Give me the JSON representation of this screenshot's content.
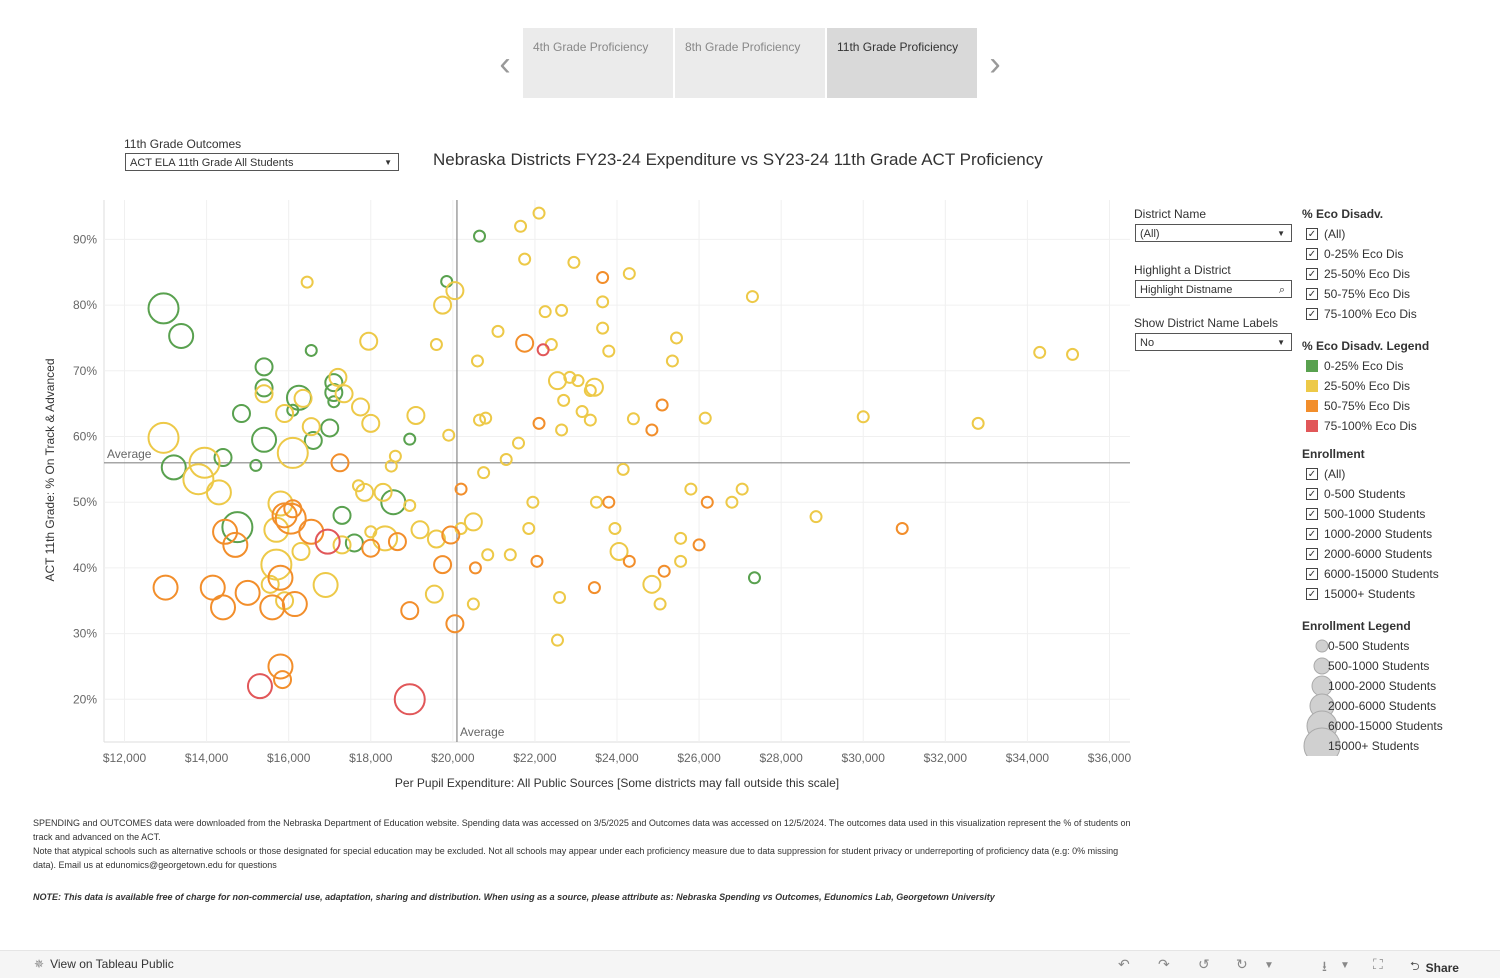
{
  "tabs": {
    "items": [
      {
        "label": "4th Grade Proficiency",
        "active": false
      },
      {
        "label": "8th Grade Proficiency",
        "active": false
      },
      {
        "label": "11th Grade Proficiency",
        "active": true
      }
    ]
  },
  "outcome_filter": {
    "label": "11th Grade Outcomes",
    "value": "ACT ELA 11th Grade All Students"
  },
  "filters": {
    "district_name_label": "District Name",
    "district_name_value": "(All)",
    "highlight_label": "Highlight a District",
    "highlight_placeholder": "Highlight Distname",
    "show_labels_label": "Show District Name Labels",
    "show_labels_value": "No"
  },
  "eco_filter": {
    "title": "% Eco Disadv.",
    "items": [
      "(All)",
      "0-25% Eco Dis",
      "25-50% Eco Dis",
      "50-75% Eco Dis",
      "75-100% Eco Dis"
    ]
  },
  "eco_legend": {
    "title": "% Eco Disadv. Legend",
    "items": [
      {
        "label": "0-25% Eco Dis",
        "color": "#59a14f"
      },
      {
        "label": "25-50% Eco Dis",
        "color": "#edc948"
      },
      {
        "label": "50-75% Eco Dis",
        "color": "#f28e2b"
      },
      {
        "label": "75-100% Eco Dis",
        "color": "#e15759"
      }
    ]
  },
  "enroll_filter": {
    "title": "Enrollment",
    "items": [
      "(All)",
      "0-500 Students",
      "500-1000 Students",
      "1000-2000 Students",
      "2000-6000 Students",
      "6000-15000 Students",
      "15000+ Students"
    ]
  },
  "enroll_legend": {
    "title": "Enrollment Legend",
    "items": [
      "0-500 Students",
      "500-1000 Students",
      "1000-2000 Students",
      "2000-6000 Students",
      "6000-15000 Students",
      "15000+ Students"
    ]
  },
  "notes": {
    "line1": "SPENDING and OUTCOMES data were downloaded from the Nebraska Department of Education website. Spending data was accessed on 3/5/2025 and Outcomes data was accessed on 12/5/2024. The outcomes data used in this visualization represent the % of students on track and advanced on the ACT.",
    "line2": "Note that atypical schools such as alternative schools or those designated for special education may be excluded. Not all schools may appear under each proficiency measure due to data suppression for student privacy or underreporting of proficiency data (e.g: 0% missing data). Email us at edunomics@georgetown.edu for questions",
    "line3": "NOTE: This data is available free of charge for non-commercial use, adaptation, sharing and distribution. When using as a source, please attribute as: Nebraska Spending vs Outcomes, Edunomics Lab, Georgetown University"
  },
  "footer": {
    "view_label": "View on Tableau Public",
    "share_label": "Share"
  },
  "chart_data": {
    "type": "scatter",
    "title": "Nebraska Districts FY23-24 Expenditure vs SY23-24 11th Grade ACT Proficiency",
    "xlabel": "Per Pupil Expenditure: All Public Sources [Some districts may fall outside this scale]",
    "ylabel": "ACT 11th Grade: % On Track & Advanced",
    "xlim": [
      11500,
      36500
    ],
    "ylim": [
      13.5,
      96
    ],
    "x_ticks": [
      12000,
      14000,
      16000,
      18000,
      20000,
      22000,
      24000,
      26000,
      28000,
      30000,
      32000,
      34000,
      36000
    ],
    "x_tick_labels": [
      "$12,000",
      "$14,000",
      "$16,000",
      "$18,000",
      "$20,000",
      "$22,000",
      "$24,000",
      "$26,000",
      "$28,000",
      "$30,000",
      "$32,000",
      "$34,000",
      "$36,000"
    ],
    "y_ticks": [
      20,
      30,
      40,
      50,
      60,
      70,
      80,
      90
    ],
    "y_tick_labels": [
      "20%",
      "30%",
      "40%",
      "50%",
      "60%",
      "70%",
      "80%",
      "90%"
    ],
    "average_x": 20100,
    "average_y": 56,
    "average_label_h": "Average",
    "average_label_v": "Average",
    "size_key": "1=0-500, 2=500-1000, 3=1000-2000, 4=2000-6000, 5=6000-15000, 6=15000+",
    "color_key": "g=0-25%, y=25-50%, o=50-75%, r=75-100%",
    "points": [
      [
        12950,
        79.5,
        "g",
        4
      ],
      [
        13380,
        75.3,
        "g",
        3
      ],
      [
        13200,
        55.3,
        "g",
        3
      ],
      [
        14400,
        56.8,
        "g",
        2
      ],
      [
        14750,
        46.2,
        "g",
        4
      ],
      [
        15400,
        70.6,
        "g",
        2
      ],
      [
        15400,
        67.4,
        "g",
        2
      ],
      [
        15200,
        55.6,
        "g",
        1
      ],
      [
        15400,
        59.5,
        "g",
        3
      ],
      [
        14850,
        63.5,
        "g",
        2
      ],
      [
        16250,
        65.9,
        "g",
        3
      ],
      [
        16100,
        64.0,
        "g",
        1
      ],
      [
        16550,
        73.1,
        "g",
        1
      ],
      [
        16600,
        59.4,
        "g",
        2
      ],
      [
        17100,
        68.2,
        "g",
        2
      ],
      [
        17100,
        66.7,
        "g",
        2
      ],
      [
        17100,
        65.3,
        "g",
        1
      ],
      [
        17000,
        61.3,
        "g",
        2
      ],
      [
        17300,
        48.0,
        "g",
        2
      ],
      [
        17600,
        43.8,
        "g",
        2
      ],
      [
        18550,
        50.0,
        "g",
        3
      ],
      [
        18950,
        59.6,
        "g",
        1
      ],
      [
        19850,
        83.6,
        "g",
        1
      ],
      [
        20650,
        90.5,
        "g",
        1
      ],
      [
        27350,
        38.5,
        "g",
        1
      ],
      [
        12950,
        59.8,
        "y",
        4
      ],
      [
        13950,
        56.0,
        "y",
        4
      ],
      [
        13800,
        53.5,
        "y",
        4
      ],
      [
        14300,
        51.5,
        "y",
        3
      ],
      [
        15400,
        66.5,
        "y",
        2
      ],
      [
        15900,
        63.5,
        "y",
        2
      ],
      [
        16100,
        57.5,
        "y",
        4
      ],
      [
        16350,
        65.8,
        "y",
        2
      ],
      [
        16450,
        83.5,
        "y",
        1
      ],
      [
        16550,
        61.5,
        "y",
        2
      ],
      [
        17200,
        69.0,
        "y",
        2
      ],
      [
        17350,
        66.5,
        "y",
        2
      ],
      [
        17750,
        64.5,
        "y",
        2
      ],
      [
        17950,
        74.5,
        "y",
        2
      ],
      [
        18000,
        62.0,
        "y",
        2
      ],
      [
        17850,
        51.5,
        "y",
        2
      ],
      [
        17700,
        52.5,
        "y",
        1
      ],
      [
        18300,
        51.5,
        "y",
        2
      ],
      [
        18500,
        55.5,
        "y",
        1
      ],
      [
        18600,
        57.0,
        "y",
        1
      ],
      [
        18950,
        49.5,
        "y",
        1
      ],
      [
        19100,
        63.2,
        "y",
        2
      ],
      [
        19600,
        74.0,
        "y",
        1
      ],
      [
        19600,
        44.4,
        "y",
        2
      ],
      [
        19750,
        80.0,
        "y",
        2
      ],
      [
        19900,
        60.2,
        "y",
        1
      ],
      [
        20050,
        82.2,
        "y",
        2
      ],
      [
        15800,
        49.8,
        "y",
        3
      ],
      [
        15700,
        45.8,
        "y",
        3
      ],
      [
        15700,
        40.5,
        "y",
        4
      ],
      [
        15550,
        37.5,
        "y",
        2
      ],
      [
        15900,
        35.0,
        "y",
        2
      ],
      [
        16300,
        42.5,
        "y",
        2
      ],
      [
        16900,
        37.4,
        "y",
        3
      ],
      [
        17300,
        43.5,
        "y",
        2
      ],
      [
        18000,
        45.5,
        "y",
        1
      ],
      [
        18350,
        44.5,
        "y",
        3
      ],
      [
        19200,
        45.8,
        "y",
        2
      ],
      [
        19550,
        36.0,
        "y",
        2
      ],
      [
        20200,
        46.0,
        "y",
        1
      ],
      [
        20500,
        47.0,
        "y",
        2
      ],
      [
        20500,
        34.5,
        "y",
        1
      ],
      [
        20600,
        71.5,
        "y",
        1
      ],
      [
        20650,
        62.5,
        "y",
        1
      ],
      [
        20800,
        62.8,
        "y",
        1
      ],
      [
        20750,
        54.5,
        "y",
        1
      ],
      [
        20850,
        42.0,
        "y",
        1
      ],
      [
        21100,
        76.0,
        "y",
        1
      ],
      [
        21300,
        56.5,
        "y",
        1
      ],
      [
        21400,
        42.0,
        "y",
        1
      ],
      [
        21600,
        59.0,
        "y",
        1
      ],
      [
        21650,
        92.0,
        "y",
        1
      ],
      [
        21750,
        87.0,
        "y",
        1
      ],
      [
        21850,
        46.0,
        "y",
        1
      ],
      [
        21950,
        50.0,
        "y",
        1
      ],
      [
        22100,
        94.0,
        "y",
        1
      ],
      [
        22250,
        79.0,
        "y",
        1
      ],
      [
        22400,
        74.0,
        "y",
        1
      ],
      [
        22550,
        68.5,
        "y",
        2
      ],
      [
        22550,
        29.0,
        "y",
        1
      ],
      [
        22600,
        35.5,
        "y",
        1
      ],
      [
        22650,
        79.2,
        "y",
        1
      ],
      [
        22650,
        61.0,
        "y",
        1
      ],
      [
        22700,
        65.5,
        "y",
        1
      ],
      [
        22850,
        69.0,
        "y",
        1
      ],
      [
        22950,
        86.5,
        "y",
        1
      ],
      [
        23050,
        68.5,
        "y",
        1
      ],
      [
        23150,
        63.8,
        "y",
        1
      ],
      [
        23350,
        67.0,
        "y",
        1
      ],
      [
        23350,
        62.5,
        "y",
        1
      ],
      [
        23450,
        67.5,
        "y",
        2
      ],
      [
        23500,
        50.0,
        "y",
        1
      ],
      [
        23650,
        80.5,
        "y",
        1
      ],
      [
        23650,
        76.5,
        "y",
        1
      ],
      [
        23800,
        73.0,
        "y",
        1
      ],
      [
        23950,
        46.0,
        "y",
        1
      ],
      [
        24050,
        42.5,
        "y",
        2
      ],
      [
        24150,
        55.0,
        "y",
        1
      ],
      [
        24300,
        84.8,
        "y",
        1
      ],
      [
        24400,
        62.7,
        "y",
        1
      ],
      [
        24850,
        37.5,
        "y",
        2
      ],
      [
        25050,
        34.5,
        "y",
        1
      ],
      [
        25350,
        71.5,
        "y",
        1
      ],
      [
        25450,
        75.0,
        "y",
        1
      ],
      [
        25550,
        44.5,
        "y",
        1
      ],
      [
        25550,
        41.0,
        "y",
        1
      ],
      [
        25800,
        52.0,
        "y",
        1
      ],
      [
        26150,
        62.8,
        "y",
        1
      ],
      [
        26800,
        50.0,
        "y",
        1
      ],
      [
        27050,
        52.0,
        "y",
        1
      ],
      [
        27300,
        81.3,
        "y",
        1
      ],
      [
        28850,
        47.8,
        "y",
        1
      ],
      [
        30000,
        63.0,
        "y",
        1
      ],
      [
        32800,
        62.0,
        "y",
        1
      ],
      [
        34300,
        72.8,
        "y",
        1
      ],
      [
        35100,
        72.5,
        "y",
        1
      ],
      [
        13000,
        37.0,
        "o",
        3
      ],
      [
        14150,
        37.0,
        "o",
        3
      ],
      [
        14400,
        34.0,
        "o",
        3
      ],
      [
        14450,
        45.5,
        "o",
        3
      ],
      [
        14700,
        43.5,
        "o",
        3
      ],
      [
        15000,
        36.2,
        "o",
        3
      ],
      [
        15600,
        34.0,
        "o",
        3
      ],
      [
        15800,
        38.5,
        "o",
        3
      ],
      [
        15900,
        48.0,
        "o",
        3
      ],
      [
        16050,
        47.5,
        "o",
        4
      ],
      [
        16100,
        49.0,
        "o",
        2
      ],
      [
        16150,
        34.5,
        "o",
        3
      ],
      [
        16550,
        45.5,
        "o",
        3
      ],
      [
        15800,
        25.0,
        "o",
        3
      ],
      [
        15850,
        23.0,
        "o",
        2
      ],
      [
        17250,
        56.0,
        "o",
        2
      ],
      [
        18000,
        43.0,
        "o",
        2
      ],
      [
        18650,
        44.0,
        "o",
        2
      ],
      [
        18950,
        33.5,
        "o",
        2
      ],
      [
        19750,
        40.5,
        "o",
        2
      ],
      [
        19950,
        45.0,
        "o",
        2
      ],
      [
        20050,
        31.5,
        "o",
        2
      ],
      [
        20200,
        52.0,
        "o",
        1
      ],
      [
        20550,
        40.0,
        "o",
        1
      ],
      [
        21750,
        74.2,
        "o",
        2
      ],
      [
        22050,
        41.0,
        "o",
        1
      ],
      [
        22100,
        62.0,
        "o",
        1
      ],
      [
        23450,
        37.0,
        "o",
        1
      ],
      [
        23650,
        84.2,
        "o",
        1
      ],
      [
        23800,
        50.0,
        "o",
        1
      ],
      [
        24300,
        41.0,
        "o",
        1
      ],
      [
        24850,
        61.0,
        "o",
        1
      ],
      [
        25100,
        64.8,
        "o",
        1
      ],
      [
        25150,
        39.5,
        "o",
        1
      ],
      [
        26000,
        43.5,
        "o",
        1
      ],
      [
        26200,
        50.0,
        "o",
        1
      ],
      [
        30950,
        46.0,
        "o",
        1
      ],
      [
        15300,
        22.0,
        "r",
        3
      ],
      [
        16950,
        44.0,
        "r",
        3
      ],
      [
        18950,
        20.0,
        "r",
        4
      ],
      [
        22200,
        73.2,
        "r",
        1
      ]
    ]
  }
}
